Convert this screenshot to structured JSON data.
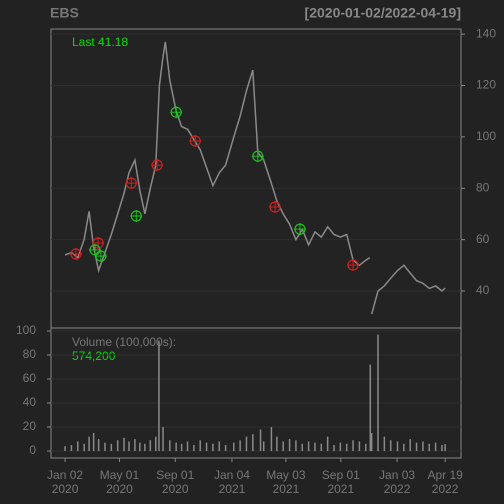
{
  "chart_data": [
    {
      "type": "line",
      "title": "EBS",
      "subtitle": "[2020-01-02/2022-04-19]",
      "annotation": "Last",
      "last_value": 41.18,
      "color": "#8a8a8a",
      "x": [
        "2020-01-02",
        "2020-01-16",
        "2020-01-30",
        "2020-02-13",
        "2020-02-24",
        "2020-03-05",
        "2020-03-16",
        "2020-03-30",
        "2020-04-13",
        "2020-04-27",
        "2020-05-11",
        "2020-05-22",
        "2020-06-04",
        "2020-06-15",
        "2020-06-26",
        "2020-07-08",
        "2020-07-20",
        "2020-07-28",
        "2020-08-04",
        "2020-08-10",
        "2020-08-20",
        "2020-09-03",
        "2020-09-15",
        "2020-09-28",
        "2020-10-12",
        "2020-10-26",
        "2020-11-09",
        "2020-11-23",
        "2020-12-07",
        "2020-12-21",
        "2021-01-08",
        "2021-01-22",
        "2021-02-05",
        "2021-02-19",
        "2021-03-02",
        "2021-03-15",
        "2021-03-30",
        "2021-04-13",
        "2021-04-27",
        "2021-05-11",
        "2021-05-25",
        "2021-06-08",
        "2021-06-22",
        "2021-07-06",
        "2021-07-20",
        "2021-08-03",
        "2021-08-17",
        "2021-08-31",
        "2021-09-14",
        "2021-09-28",
        "2021-10-12",
        "2021-10-26",
        "2021-11-04",
        "2021-11-05",
        "2021-11-08",
        "2021-11-22",
        "2021-12-06",
        "2021-12-20",
        "2022-01-04",
        "2022-01-18",
        "2022-02-01",
        "2022-02-15",
        "2022-03-01",
        "2022-03-15",
        "2022-03-29",
        "2022-04-12",
        "2022-04-19"
      ],
      "values": [
        54,
        55,
        53,
        60,
        71,
        57,
        48,
        55,
        62,
        70,
        78,
        86,
        91,
        79,
        70,
        80,
        89,
        120,
        130,
        137,
        122,
        110,
        104,
        103,
        99,
        95,
        88,
        81,
        86,
        89,
        100,
        108,
        118,
        126,
        94,
        91,
        83,
        75,
        70,
        66,
        60,
        64,
        58,
        63,
        61,
        65,
        62,
        61,
        62,
        52,
        50,
        52,
        53,
        null,
        31,
        40,
        42,
        45,
        48,
        50,
        47,
        44,
        43,
        41,
        42,
        40,
        41.18
      ],
      "points": [
        {
          "color": "#d02020",
          "x": [
            "2020-01-26",
            "2020-03-15",
            "2020-05-27",
            "2020-07-23",
            "2020-10-15",
            "2021-04-09",
            "2021-09-28"
          ],
          "values": [
            54.4,
            58.7,
            82,
            89,
            98.4,
            72.7,
            50.1
          ]
        },
        {
          "color": "#20c020",
          "x": [
            "2020-03-08",
            "2020-03-21",
            "2020-06-07",
            "2020-09-03",
            "2021-03-02",
            "2021-06-03"
          ],
          "values": [
            56,
            53.6,
            69.2,
            109.6,
            92.5,
            64.1
          ]
        }
      ],
      "xlim": [
        "2019-12-02",
        "2022-05-24"
      ],
      "ylim": [
        25.6,
        142
      ],
      "yticks": [
        40,
        60,
        80,
        100,
        120,
        140
      ],
      "grid": true
    },
    {
      "type": "bar",
      "annotation": "Volume (100,000s):",
      "last_value": {
        "value": 5.742,
        "label": "574,200"
      },
      "color": "#8a8a8a",
      "x": [
        "2020-01-02",
        "2020-01-16",
        "2020-01-30",
        "2020-02-13",
        "2020-02-24",
        "2020-03-05",
        "2020-03-16",
        "2020-03-30",
        "2020-04-13",
        "2020-04-27",
        "2020-05-11",
        "2020-05-22",
        "2020-06-04",
        "2020-06-15",
        "2020-06-26",
        "2020-07-08",
        "2020-07-20",
        "2020-07-27",
        "2020-08-05",
        "2020-08-20",
        "2020-09-03",
        "2020-09-15",
        "2020-09-28",
        "2020-10-12",
        "2020-10-26",
        "2020-11-09",
        "2020-11-23",
        "2020-12-07",
        "2020-12-21",
        "2021-01-08",
        "2021-01-22",
        "2021-02-05",
        "2021-02-19",
        "2021-03-08",
        "2021-03-15",
        "2021-04-01",
        "2021-04-13",
        "2021-04-27",
        "2021-05-11",
        "2021-05-25",
        "2021-06-08",
        "2021-06-22",
        "2021-07-06",
        "2021-07-20",
        "2021-08-03",
        "2021-08-17",
        "2021-08-31",
        "2021-09-14",
        "2021-09-28",
        "2021-10-12",
        "2021-10-26",
        "2021-11-05",
        "2021-11-08",
        "2021-11-22",
        "2021-12-06",
        "2021-12-20",
        "2022-01-04",
        "2022-01-18",
        "2022-02-01",
        "2022-02-15",
        "2022-03-01",
        "2022-03-15",
        "2022-03-29",
        "2022-04-12",
        "2022-04-19"
      ],
      "values": [
        4,
        5,
        8,
        6,
        12,
        15,
        10,
        7,
        6,
        9,
        11,
        8,
        10,
        7,
        6,
        9,
        12,
        92,
        20,
        9,
        7,
        6,
        8,
        5,
        9,
        7,
        6,
        8,
        5,
        7,
        9,
        12,
        14,
        18,
        8,
        20,
        12,
        8,
        10,
        9,
        6,
        8,
        7,
        6,
        12,
        5,
        7,
        6,
        9,
        8,
        6,
        72,
        15,
        97,
        12,
        9,
        8,
        6,
        10,
        7,
        8,
        6,
        7,
        5,
        5.742
      ],
      "xlim": [
        "2019-12-02",
        "2022-05-24"
      ],
      "ylim": [
        -5.8,
        102.5
      ],
      "yticks": [
        0,
        20,
        40,
        60,
        80,
        100
      ],
      "grid": true,
      "xticks": [
        {
          "value": "2020-01-02",
          "label": "Jan 02",
          "sublabel": "2020"
        },
        {
          "value": "2020-05-01",
          "label": "May 01",
          "sublabel": "2020"
        },
        {
          "value": "2020-09-01",
          "label": "Sep 01",
          "sublabel": "2020"
        },
        {
          "value": "2021-01-04",
          "label": "Jan 04",
          "sublabel": "2021"
        },
        {
          "value": "2021-05-03",
          "label": "May 03",
          "sublabel": "2021"
        },
        {
          "value": "2021-09-01",
          "label": "Sep 01",
          "sublabel": "2021"
        },
        {
          "value": "2022-01-03",
          "label": "Jan 03",
          "sublabel": "2022"
        },
        {
          "value": "2022-04-19",
          "label": "Apr 19",
          "sublabel": "2022"
        }
      ]
    }
  ]
}
